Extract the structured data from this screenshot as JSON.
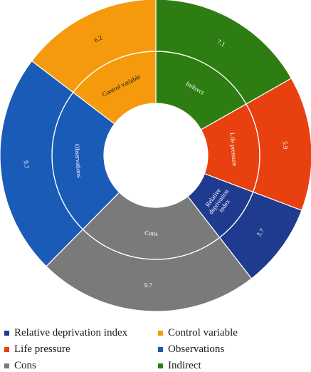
{
  "chart_data": {
    "type": "pie",
    "subtype": "sunburst-donut",
    "categories": [
      "Indirect",
      "Life pressure",
      "Relative deprivation index",
      "Cons",
      "Observations",
      "Control variable"
    ],
    "outer_ring": {
      "values": [
        7.1,
        5.9,
        3.7,
        9.7,
        9.7,
        6.2
      ],
      "labels": [
        "7.1",
        "5.9",
        "3.7",
        "9.7",
        "9.7",
        "6.2"
      ]
    },
    "inner_ring": {
      "labels": [
        "Indirect",
        "Life pressure",
        "Relative deprivation index",
        "Cons",
        "Observations",
        "Control variable"
      ]
    },
    "colors": {
      "Indirect": "#2e7d12",
      "Life pressure": "#e8400e",
      "Relative deprivation index": "#1f3b8f",
      "Cons": "#7a7a7a",
      "Observations": "#1a5bb8",
      "Control variable": "#f59a0c"
    },
    "legend": {
      "placement": "bottom",
      "entries": [
        "Relative deprivation index",
        "Control variable",
        "Life pressure",
        "Observations",
        "Cons",
        "Indirect"
      ]
    }
  }
}
